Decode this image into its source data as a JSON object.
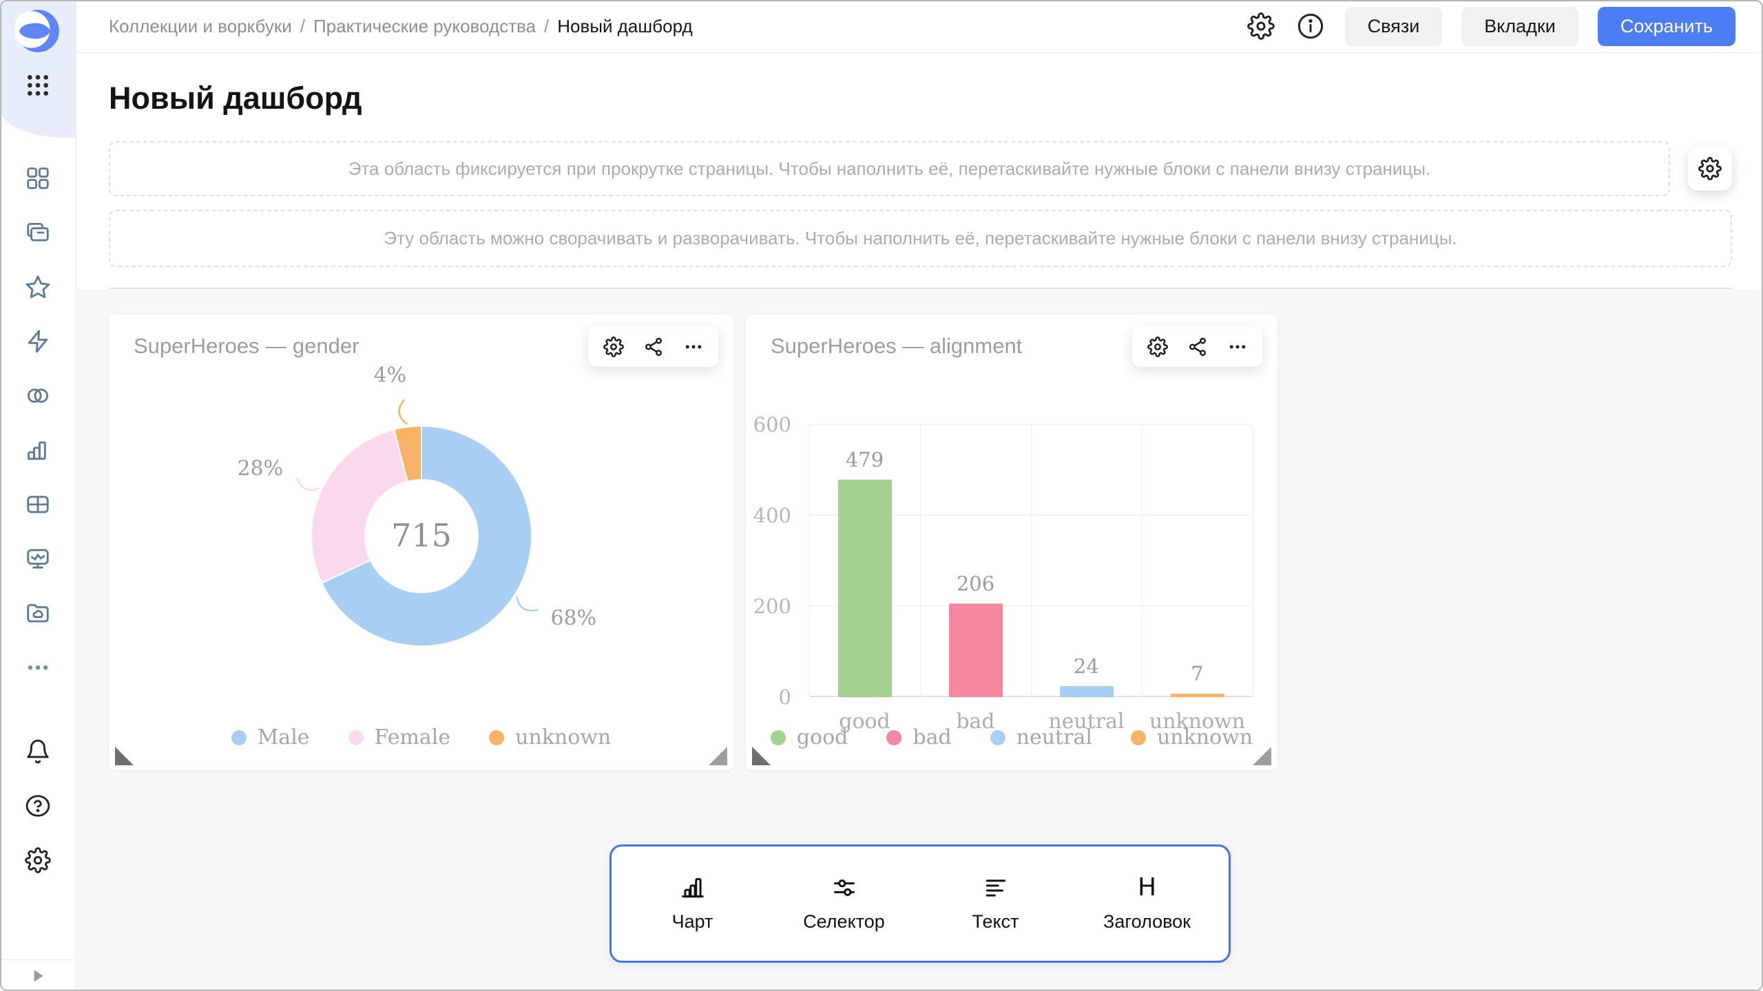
{
  "header": {
    "breadcrumb": [
      "Коллекции и воркбуки",
      "Практические руководства",
      "Новый дашборд"
    ],
    "breadcrumb_separator": "/",
    "buttons": {
      "links": "Связи",
      "tabs": "Вкладки",
      "save": "Сохранить"
    },
    "icons": [
      "settings-icon",
      "info-icon"
    ]
  },
  "sidebar": {
    "icons": [
      "datalens-logo",
      "apps-grid-icon",
      "dashboards-icon",
      "collections-icon",
      "favorites-icon",
      "connections-icon",
      "datasets-icon",
      "charts-icon",
      "tables-icon",
      "monitoring-icon",
      "storage-icon",
      "more-icon",
      "notifications-icon",
      "help-icon",
      "settings-icon",
      "expand-icon"
    ]
  },
  "page": {
    "title": "Новый дашборд",
    "fixed_area_hint": "Эта область фиксируется при прокрутке страницы. Чтобы наполнить её, перетаскивайте нужные блоки с панели внизу страницы.",
    "collapsible_area_hint": "Эту область можно сворачивать и разворачивать. Чтобы наполнить её, перетаскивайте нужные блоки с панели внизу страницы."
  },
  "cards": [
    {
      "actions": [
        "settings-icon",
        "share-icon",
        "more-icon"
      ],
      "chart_data": {
        "type": "pie",
        "subtype": "donut",
        "title": "SuperHeroes — gender",
        "categories": [
          "Male",
          "Female",
          "unknown"
        ],
        "percents": [
          68,
          28,
          4
        ],
        "center_total": 715,
        "colors": [
          "#a9cef3",
          "#fbd9ec",
          "#f7b267"
        ],
        "legend_position": "bottom"
      }
    },
    {
      "actions": [
        "settings-icon",
        "share-icon",
        "more-icon"
      ],
      "chart_data": {
        "type": "bar",
        "title": "SuperHeroes — alignment",
        "categories": [
          "good",
          "bad",
          "neutral",
          "unknown"
        ],
        "values": [
          479,
          206,
          24,
          7
        ],
        "colors": [
          "#a3d18f",
          "#f5879f",
          "#a9cef3",
          "#f7b267"
        ],
        "ylim": [
          0,
          600
        ],
        "yticks": [
          0,
          200,
          400,
          600
        ],
        "grid": true,
        "legend_position": "bottom"
      }
    }
  ],
  "bottom_panel": {
    "items": [
      {
        "label": "Чарт",
        "icon": "chart-icon"
      },
      {
        "label": "Селектор",
        "icon": "selector-icon"
      },
      {
        "label": "Текст",
        "icon": "text-icon"
      },
      {
        "label": "Заголовок",
        "icon": "heading-icon"
      }
    ]
  },
  "colors": {
    "accent": "#4d7df2",
    "panel_border": "#4673e8",
    "sidebar_icon": "#5e7a93",
    "board_background": "#f7f7f8"
  }
}
